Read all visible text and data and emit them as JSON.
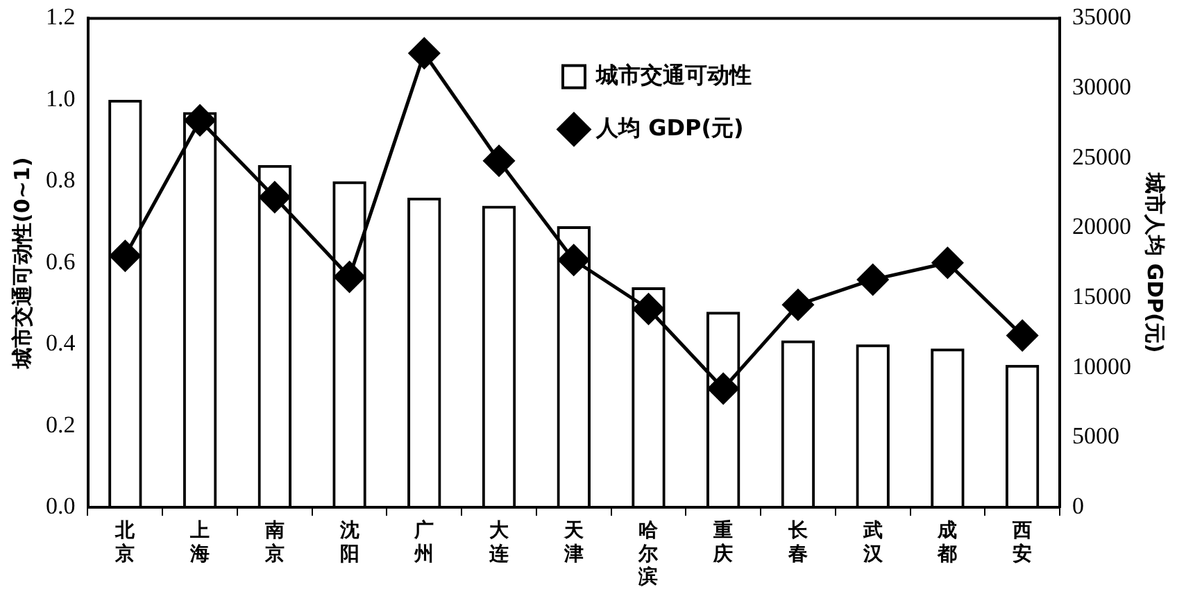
{
  "chart_data": {
    "type": "bar",
    "ylabel": "城市交通可动性(0~1)",
    "y2label": "城市人均 GDP(元)",
    "categories": [
      "北京",
      "上海",
      "南京",
      "沈阳",
      "广州",
      "大连",
      "天津",
      "哈尔滨",
      "重庆",
      "长春",
      "武汉",
      "成都",
      "西安"
    ],
    "series": [
      {
        "name": "城市交通可动性",
        "color": "#000000",
        "values": [
          1.0,
          0.97,
          0.84,
          0.8,
          0.76,
          0.74,
          0.69,
          0.54,
          0.48,
          0.41,
          0.4,
          0.39,
          0.35
        ]
      },
      {
        "name": "人均 GDP(元)",
        "type": "line",
        "axis": "y2",
        "color": "#000000",
        "marker": "diamond",
        "values": [
          18000,
          27700,
          22200,
          16500,
          32500,
          24800,
          17700,
          14200,
          8500,
          14500,
          16300,
          17500,
          12300
        ]
      }
    ],
    "ylim": [
      0,
      1.2
    ],
    "yticks": [
      {
        "value": 0,
        "label": "0.0"
      },
      {
        "value": 0.2,
        "label": "0.2"
      },
      {
        "value": 0.4,
        "label": "0.4"
      },
      {
        "value": 0.6,
        "label": "0.6"
      },
      {
        "value": 0.8,
        "label": "0.8"
      },
      {
        "value": 1,
        "label": "1.0"
      },
      {
        "value": 1.2,
        "label": "1.2"
      }
    ],
    "y2lim": [
      0,
      35000
    ],
    "y2ticks": [
      0,
      5000,
      10000,
      15000,
      20000,
      25000,
      30000,
      35000
    ],
    "grid": false,
    "legend": "top right"
  }
}
